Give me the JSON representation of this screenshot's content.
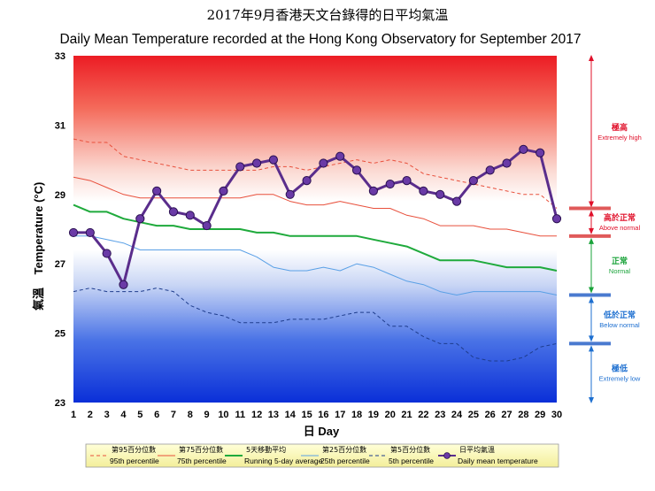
{
  "chart_data": {
    "type": "line",
    "title": "2017年9月香港天文台錄得的日平均氣溫",
    "subtitle": "Daily Mean Temperature recorded at the Hong Kong Observatory for September 2017",
    "xlabel": "日 Day",
    "ylabel_cn": "氣溫",
    "ylabel_en": "Temperature (°C)",
    "ylim": [
      23,
      33
    ],
    "yticks": [
      23,
      25,
      27,
      29,
      31,
      33
    ],
    "x": [
      1,
      2,
      3,
      4,
      5,
      6,
      7,
      8,
      9,
      10,
      11,
      12,
      13,
      14,
      15,
      16,
      17,
      18,
      19,
      20,
      21,
      22,
      23,
      24,
      25,
      26,
      27,
      28,
      29,
      30
    ],
    "series": [
      {
        "key": "p95",
        "name": "第95百分位數 95th percentile",
        "color": "#e8503c",
        "dash": "4,3",
        "width": 1,
        "values": [
          30.6,
          30.5,
          30.5,
          30.1,
          30.0,
          29.9,
          29.8,
          29.7,
          29.7,
          29.7,
          29.7,
          29.7,
          29.8,
          29.8,
          29.7,
          29.8,
          29.9,
          30.0,
          29.9,
          30.0,
          29.9,
          29.6,
          29.5,
          29.4,
          29.3,
          29.2,
          29.1,
          29.0,
          29.0,
          28.6
        ]
      },
      {
        "key": "p75",
        "name": "第75百分位數 75th percentile",
        "color": "#e8503c",
        "dash": "",
        "width": 1,
        "values": [
          29.5,
          29.4,
          29.2,
          29.0,
          28.9,
          28.9,
          28.9,
          28.9,
          28.9,
          28.9,
          28.9,
          29.0,
          29.0,
          28.8,
          28.7,
          28.7,
          28.8,
          28.7,
          28.6,
          28.6,
          28.4,
          28.3,
          28.1,
          28.1,
          28.1,
          28.0,
          28.0,
          27.9,
          27.8,
          27.8
        ]
      },
      {
        "key": "avg5",
        "name": "5天移動平均 Running 5-day average",
        "color": "#1faa3c",
        "dash": "",
        "width": 2,
        "values": [
          28.7,
          28.5,
          28.5,
          28.3,
          28.2,
          28.1,
          28.1,
          28.0,
          28.0,
          28.0,
          28.0,
          27.9,
          27.9,
          27.8,
          27.8,
          27.8,
          27.8,
          27.8,
          27.7,
          27.6,
          27.5,
          27.3,
          27.1,
          27.1,
          27.1,
          27.0,
          26.9,
          26.9,
          26.9,
          26.8
        ]
      },
      {
        "key": "p25",
        "name": "第25百分位數 25th percentile",
        "color": "#5aa0e6",
        "dash": "",
        "width": 1,
        "values": [
          27.8,
          27.8,
          27.7,
          27.6,
          27.4,
          27.4,
          27.4,
          27.4,
          27.4,
          27.4,
          27.4,
          27.2,
          26.9,
          26.8,
          26.8,
          26.9,
          26.8,
          27.0,
          26.9,
          26.7,
          26.5,
          26.4,
          26.2,
          26.1,
          26.2,
          26.2,
          26.2,
          26.2,
          26.2,
          26.1
        ]
      },
      {
        "key": "p5",
        "name": "第5百分位數 5th percentile",
        "color": "#1e3c8c",
        "dash": "4,3",
        "width": 1,
        "values": [
          26.2,
          26.3,
          26.2,
          26.2,
          26.2,
          26.3,
          26.2,
          25.8,
          25.6,
          25.5,
          25.3,
          25.3,
          25.3,
          25.4,
          25.4,
          25.4,
          25.5,
          25.6,
          25.6,
          25.2,
          25.2,
          24.9,
          24.7,
          24.7,
          24.3,
          24.2,
          24.2,
          24.3,
          24.6,
          24.7
        ]
      },
      {
        "key": "daily",
        "name": "日平均氣溫 Daily mean temperature",
        "color": "#5a2d8c",
        "dash": "",
        "width": 3,
        "values": [
          27.9,
          27.9,
          27.3,
          26.4,
          28.3,
          29.1,
          28.5,
          28.4,
          28.1,
          29.1,
          29.8,
          29.9,
          30.0,
          29.0,
          29.4,
          29.9,
          30.1,
          29.7,
          29.1,
          29.3,
          29.4,
          29.1,
          29.0,
          28.8,
          29.4,
          29.7,
          29.9,
          30.3,
          30.2,
          28.3
        ]
      }
    ],
    "zones": [
      {
        "key": "xhigh",
        "cn": "極高",
        "en": "Extremely high",
        "color": "#e0102a"
      },
      {
        "key": "above",
        "cn": "高於正常",
        "en": "Above normal",
        "color": "#e0102a"
      },
      {
        "key": "normal",
        "cn": "正常",
        "en": "Normal",
        "color": "#1aa33a"
      },
      {
        "key": "below",
        "cn": "低於正常",
        "en": "Below normal",
        "color": "#1d6fd0"
      },
      {
        "key": "xlow",
        "cn": "極低",
        "en": "Extremely low",
        "color": "#1d6fd0"
      }
    ],
    "zone_bounds": {
      "above_top": 28.6,
      "above_bottom": 27.8,
      "below_top": 26.1,
      "below_bottom": 24.7
    },
    "legend": [
      {
        "key": "p95",
        "cn": "第95百分位數",
        "en": "95th percentile"
      },
      {
        "key": "p75",
        "cn": "第75百分位數",
        "en": "75th percentile"
      },
      {
        "key": "avg5",
        "cn": "5天移動平均",
        "en": "Running 5-day average"
      },
      {
        "key": "p25",
        "cn": "第25百分位數",
        "en": "25th percentile"
      },
      {
        "key": "p5",
        "cn": "第5百分位數",
        "en": "5th percentile"
      },
      {
        "key": "daily",
        "cn": "日平均氣溫",
        "en": "Daily mean temperature"
      }
    ],
    "grid": false,
    "legend_position": "bottom"
  }
}
